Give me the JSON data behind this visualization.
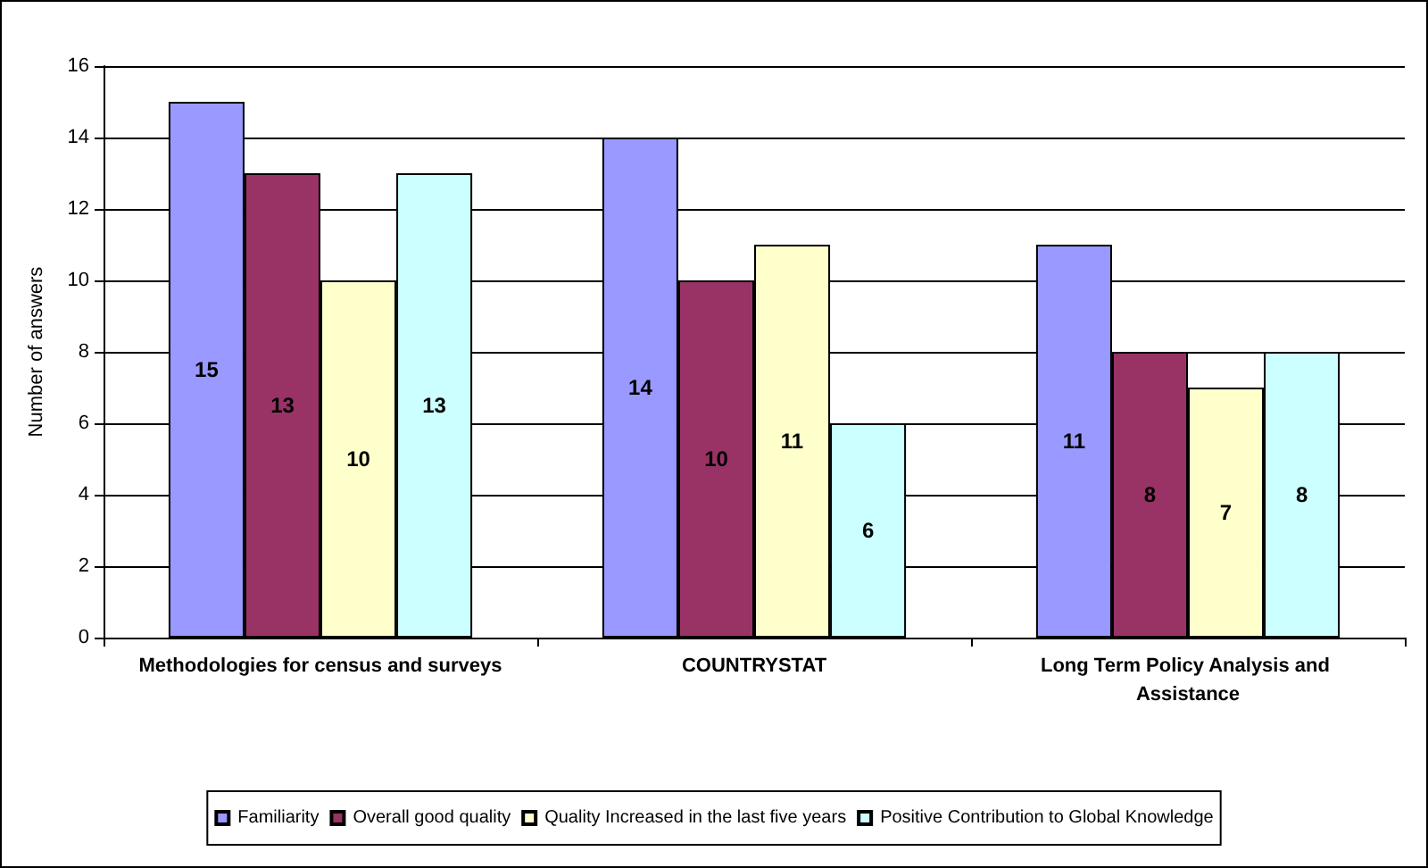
{
  "chart_data": {
    "type": "bar",
    "ylabel": "Number of answers",
    "categories": [
      "Methodologies for census and surveys",
      "COUNTRYSTAT",
      "Long Term Policy Analysis and Assistance"
    ],
    "series": [
      {
        "name": "Familiarity",
        "color": "#9999ff",
        "values": [
          15,
          14,
          11
        ]
      },
      {
        "name": "Overall good quality",
        "color": "#993366",
        "values": [
          13,
          10,
          8
        ]
      },
      {
        "name": "Quality Increased in the last five years",
        "color": "#ffffcc",
        "values": [
          10,
          11,
          7
        ]
      },
      {
        "name": "Positive Contribution to Global Knowledge",
        "color": "#ccffff",
        "values": [
          13,
          6,
          8
        ]
      }
    ],
    "ylim": [
      0,
      16
    ],
    "yticks": [
      0,
      2,
      4,
      6,
      8,
      10,
      12,
      14,
      16
    ],
    "grid": "y",
    "legend": "bottom",
    "data_labels": true
  }
}
